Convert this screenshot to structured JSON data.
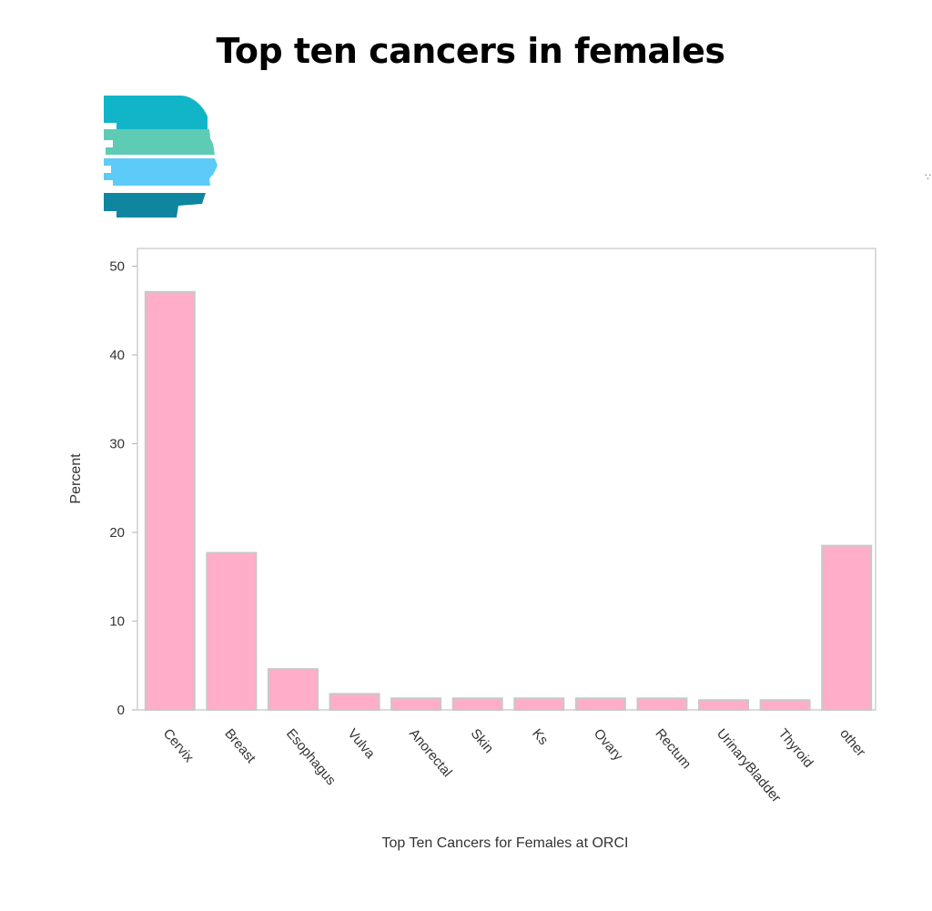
{
  "page": {
    "title": "Top ten cancers in females"
  },
  "logo": {
    "icon": "head-profile-stripes-logo",
    "colors": [
      "#12b5c8",
      "#5ecbb4",
      "#5ccbf7",
      "#0f85a0"
    ]
  },
  "edge_mark": "∵",
  "chart_data": {
    "type": "bar",
    "categories": [
      "Cervix",
      "Breast",
      "Esophagus",
      "Vulva",
      "Anorectal",
      "Skin",
      "Ks",
      "Ovary",
      "Rectum",
      "UrinaryBladder",
      "Thyroid",
      "other"
    ],
    "values": [
      47.1,
      17.7,
      4.6,
      1.8,
      1.3,
      1.3,
      1.3,
      1.3,
      1.3,
      1.1,
      1.1,
      18.5
    ],
    "title": "",
    "xlabel": "Top Ten Cancers for Females at ORCI",
    "ylabel": "Percent",
    "ylim": [
      0,
      52
    ],
    "yticks": [
      0,
      10,
      20,
      30,
      40,
      50
    ],
    "bar_color": "#ffadc9",
    "bar_outline_color": "#c8c8c8",
    "grid": false,
    "legend": "none"
  }
}
